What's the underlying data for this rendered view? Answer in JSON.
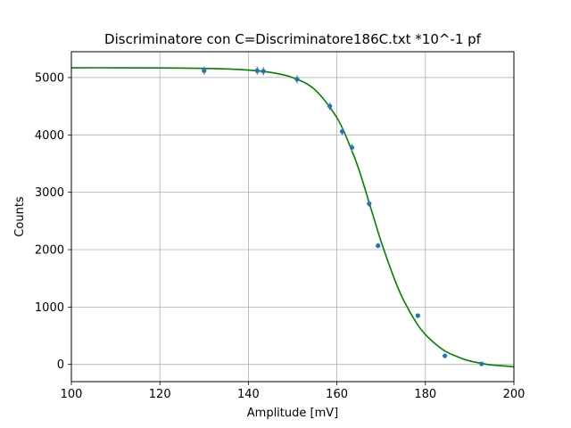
{
  "chart_data": {
    "type": "scatter",
    "title": "Discriminatore con C=Discriminatore186C.txt *10^-1 pf",
    "xlabel": "Amplitude [mV]",
    "ylabel": "Counts",
    "xlim": [
      100,
      200
    ],
    "ylim": [
      -300,
      5450
    ],
    "x_ticks": [
      100,
      120,
      140,
      160,
      180,
      200
    ],
    "y_ticks": [
      0,
      1000,
      2000,
      3000,
      4000,
      5000
    ],
    "x_tick_labels": [
      "100",
      "120",
      "140",
      "160",
      "180",
      "200"
    ],
    "y_tick_labels": [
      "0",
      "1000",
      "2000",
      "3000",
      "4000",
      "5000"
    ],
    "grid": true,
    "legend": "none",
    "series": [
      {
        "kind": "points_with_error_bars",
        "color": "#1f77b4",
        "error_color": "#9467bd",
        "points": [
          {
            "x": 130.0,
            "y": 5120,
            "err": 70
          },
          {
            "x": 142.0,
            "y": 5120,
            "err": 70
          },
          {
            "x": 143.4,
            "y": 5110,
            "err": 70
          },
          {
            "x": 151.0,
            "y": 4970,
            "err": 70
          },
          {
            "x": 158.4,
            "y": 4500,
            "err": 65
          },
          {
            "x": 161.2,
            "y": 4060,
            "err": 65
          },
          {
            "x": 163.4,
            "y": 3780,
            "err": 60
          },
          {
            "x": 167.3,
            "y": 2800,
            "err": 50
          },
          {
            "x": 169.3,
            "y": 2070,
            "err": 45
          },
          {
            "x": 178.3,
            "y": 850,
            "err": 30
          },
          {
            "x": 184.4,
            "y": 150,
            "err": 12
          },
          {
            "x": 192.7,
            "y": 10,
            "err": 3
          }
        ]
      },
      {
        "kind": "fit_curve",
        "color": "#008000",
        "x": [
          100,
          110,
          120,
          130,
          135,
          140,
          145,
          150,
          155,
          160,
          163,
          165,
          168,
          170,
          173,
          175,
          178,
          180,
          183,
          185,
          188,
          190,
          193,
          195,
          200
        ],
        "y": [
          5170,
          5170,
          5168,
          5160,
          5150,
          5130,
          5090,
          5000,
          4790,
          4300,
          3800,
          3390,
          2640,
          2140,
          1490,
          1130,
          720,
          520,
          310,
          210,
          110,
          60,
          15,
          -10,
          -40
        ]
      }
    ]
  }
}
